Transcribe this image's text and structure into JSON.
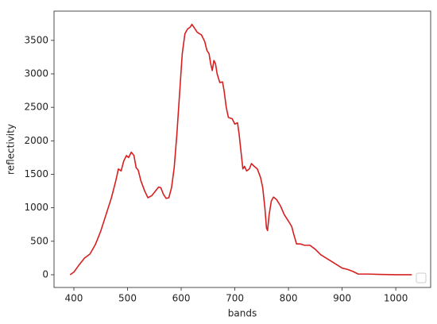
{
  "chart_data": {
    "type": "line",
    "x_label": "bands",
    "y_label": "reflectivity",
    "series": [
      {
        "color": "#d62020",
        "x": [
          393,
          400,
          410,
          420,
          430,
          440,
          450,
          460,
          470,
          478,
          483,
          488,
          493,
          498,
          502,
          507,
          512,
          516,
          520,
          525,
          532,
          538,
          545,
          552,
          558,
          562,
          567,
          572,
          577,
          582,
          587,
          592,
          597,
          602,
          607,
          612,
          617,
          620,
          625,
          630,
          638,
          644,
          648,
          652,
          655,
          658,
          661,
          664,
          667,
          672,
          677,
          680,
          684,
          688,
          695,
          700,
          705,
          708,
          712,
          715,
          718,
          722,
          727,
          731,
          736,
          742,
          748,
          752,
          756,
          759,
          761,
          764,
          768,
          772,
          778,
          785,
          792,
          800,
          806,
          810,
          815,
          822,
          830,
          840,
          850,
          860,
          870,
          880,
          890,
          900,
          910,
          920,
          930,
          950,
          970,
          1000,
          1030
        ],
        "values": [
          0,
          40,
          150,
          250,
          310,
          450,
          650,
          900,
          1150,
          1400,
          1580,
          1550,
          1700,
          1780,
          1750,
          1830,
          1780,
          1600,
          1560,
          1400,
          1250,
          1150,
          1180,
          1250,
          1310,
          1300,
          1200,
          1140,
          1150,
          1300,
          1600,
          2100,
          2700,
          3300,
          3600,
          3670,
          3700,
          3740,
          3680,
          3620,
          3580,
          3480,
          3350,
          3300,
          3150,
          3050,
          3200,
          3150,
          3000,
          2870,
          2880,
          2750,
          2500,
          2350,
          2330,
          2250,
          2270,
          2100,
          1800,
          1580,
          1620,
          1550,
          1580,
          1660,
          1620,
          1580,
          1450,
          1300,
          1000,
          700,
          660,
          900,
          1100,
          1160,
          1120,
          1030,
          900,
          800,
          720,
          600,
          460,
          460,
          440,
          440,
          380,
          300,
          250,
          200,
          150,
          100,
          80,
          50,
          10,
          10,
          5,
          0,
          0
        ]
      }
    ],
    "xlim": [
      363,
      1065
    ],
    "xticks": [
      400,
      500,
      600,
      700,
      800,
      900,
      1000
    ],
    "ylim": [
      -190,
      3937
    ],
    "yticks": [
      0,
      500,
      1000,
      1500,
      2000,
      2500,
      3000,
      3500
    ],
    "grid": false,
    "legend": "lower right"
  }
}
